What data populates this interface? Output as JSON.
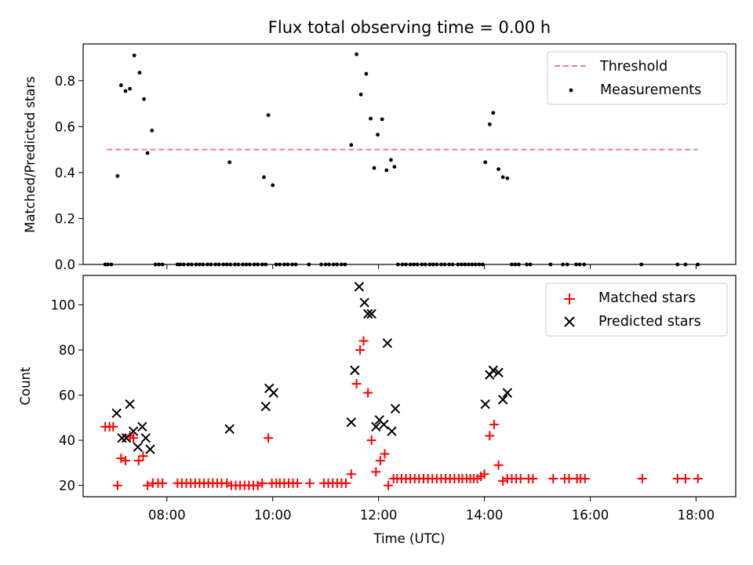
{
  "title": "Flux total observing time = 0.00 h",
  "chart_data": [
    {
      "type": "scatter",
      "ylabel": "Matched/Predicted stars",
      "xlabel": "",
      "xlim": [
        "06:25",
        "18:45"
      ],
      "ylim": [
        0,
        0.96
      ],
      "yticks": [
        "0.0",
        "0.2",
        "0.4",
        "0.6",
        "0.8"
      ],
      "grid": false,
      "legend_position": "top-right",
      "threshold": {
        "name": "Threshold",
        "y": 0.5,
        "x_start": "06:52",
        "x_end": "18:02",
        "color": "#f08080",
        "style": "dashed"
      },
      "series": [
        {
          "name": "Measurements",
          "color": "#000000",
          "points": [
            [
              "06:50",
              0
            ],
            [
              "06:53",
              0
            ],
            [
              "06:57",
              0
            ],
            [
              "07:04",
              0.385
            ],
            [
              "07:08",
              0.78
            ],
            [
              "07:13",
              0.755
            ],
            [
              "07:18",
              0.765
            ],
            [
              "07:23",
              0.91
            ],
            [
              "07:29",
              0.835
            ],
            [
              "07:34",
              0.72
            ],
            [
              "07:38",
              0.485
            ],
            [
              "07:43",
              0.583
            ],
            [
              "07:47",
              0
            ],
            [
              "07:51",
              0
            ],
            [
              "07:55",
              0
            ],
            [
              "08:12",
              0
            ],
            [
              "08:15",
              0
            ],
            [
              "08:19",
              0
            ],
            [
              "08:24",
              0
            ],
            [
              "08:28",
              0
            ],
            [
              "08:33",
              0
            ],
            [
              "08:37",
              0
            ],
            [
              "08:41",
              0
            ],
            [
              "08:46",
              0
            ],
            [
              "08:50",
              0
            ],
            [
              "08:55",
              0
            ],
            [
              "08:59",
              0
            ],
            [
              "09:04",
              0
            ],
            [
              "09:08",
              0
            ],
            [
              "09:12",
              0
            ],
            [
              "09:11",
              0.445
            ],
            [
              "09:17",
              0
            ],
            [
              "09:21",
              0
            ],
            [
              "09:26",
              0
            ],
            [
              "09:30",
              0
            ],
            [
              "09:34",
              0
            ],
            [
              "09:39",
              0
            ],
            [
              "09:43",
              0
            ],
            [
              "09:48",
              0
            ],
            [
              "09:52",
              0
            ],
            [
              "09:50",
              0.38
            ],
            [
              "09:55",
              0.65
            ],
            [
              "10:00",
              0.345
            ],
            [
              "10:04",
              0
            ],
            [
              "10:08",
              0
            ],
            [
              "10:13",
              0
            ],
            [
              "10:17",
              0
            ],
            [
              "10:22",
              0
            ],
            [
              "10:26",
              0
            ],
            [
              "10:41",
              0
            ],
            [
              "10:55",
              0
            ],
            [
              "11:00",
              0
            ],
            [
              "11:04",
              0
            ],
            [
              "11:09",
              0
            ],
            [
              "11:13",
              0
            ],
            [
              "11:18",
              0
            ],
            [
              "11:22",
              0
            ],
            [
              "11:29",
              0.52
            ],
            [
              "11:35",
              0.915
            ],
            [
              "11:40",
              0.74
            ],
            [
              "11:46",
              0.83
            ],
            [
              "11:51",
              0.635
            ],
            [
              "11:55",
              0.42
            ],
            [
              "11:59",
              0.565
            ],
            [
              "12:04",
              0.632
            ],
            [
              "12:09",
              0.41
            ],
            [
              "12:14",
              0.455
            ],
            [
              "12:18",
              0.425
            ],
            [
              "12:22",
              0
            ],
            [
              "12:27",
              0
            ],
            [
              "12:31",
              0
            ],
            [
              "12:36",
              0
            ],
            [
              "12:40",
              0
            ],
            [
              "12:44",
              0
            ],
            [
              "12:49",
              0
            ],
            [
              "12:53",
              0
            ],
            [
              "12:58",
              0
            ],
            [
              "13:02",
              0
            ],
            [
              "13:06",
              0
            ],
            [
              "13:11",
              0
            ],
            [
              "13:15",
              0
            ],
            [
              "13:20",
              0
            ],
            [
              "13:24",
              0
            ],
            [
              "13:30",
              0
            ],
            [
              "13:34",
              0
            ],
            [
              "13:38",
              0
            ],
            [
              "13:42",
              0
            ],
            [
              "13:46",
              0
            ],
            [
              "13:50",
              0
            ],
            [
              "13:54",
              0
            ],
            [
              "13:58",
              0
            ],
            [
              "14:01",
              0.445
            ],
            [
              "14:06",
              0.61
            ],
            [
              "14:10",
              0.66
            ],
            [
              "14:16",
              0.415
            ],
            [
              "14:21",
              0.38
            ],
            [
              "14:26",
              0.375
            ],
            [
              "14:31",
              0
            ],
            [
              "14:35",
              0
            ],
            [
              "14:39",
              0
            ],
            [
              "14:48",
              0
            ],
            [
              "14:52",
              0
            ],
            [
              "15:15",
              0
            ],
            [
              "15:29",
              0
            ],
            [
              "15:34",
              0
            ],
            [
              "15:44",
              0
            ],
            [
              "15:48",
              0
            ],
            [
              "15:53",
              0
            ],
            [
              "16:58",
              0
            ],
            [
              "17:39",
              0
            ],
            [
              "17:48",
              0
            ],
            [
              "18:02",
              0
            ]
          ]
        }
      ]
    },
    {
      "type": "scatter",
      "ylabel": "Count",
      "xlabel": "Time (UTC)",
      "xlim": [
        "06:25",
        "18:45"
      ],
      "xticks": [
        "08:00",
        "10:00",
        "12:00",
        "14:00",
        "16:00",
        "18:00"
      ],
      "ylim": [
        15,
        113
      ],
      "yticks": [
        "20",
        "40",
        "60",
        "80",
        "100"
      ],
      "grid": false,
      "legend_position": "top-right",
      "series": [
        {
          "name": "Matched stars",
          "color": "#ff0000",
          "marker": "plus",
          "points": [
            [
              "06:50",
              46
            ],
            [
              "06:55",
              46
            ],
            [
              "06:59",
              46
            ],
            [
              "07:04",
              20
            ],
            [
              "07:08",
              32
            ],
            [
              "07:13",
              31
            ],
            [
              "07:18",
              42
            ],
            [
              "07:22",
              41
            ],
            [
              "07:28",
              31
            ],
            [
              "07:33",
              33
            ],
            [
              "07:38",
              20
            ],
            [
              "07:44",
              21
            ],
            [
              "07:50",
              21
            ],
            [
              "07:55",
              21
            ],
            [
              "08:12",
              21
            ],
            [
              "08:17",
              21
            ],
            [
              "08:22",
              21
            ],
            [
              "08:27",
              21
            ],
            [
              "08:32",
              21
            ],
            [
              "08:37",
              21
            ],
            [
              "08:42",
              21
            ],
            [
              "08:47",
              21
            ],
            [
              "08:52",
              21
            ],
            [
              "08:57",
              21
            ],
            [
              "09:02",
              21
            ],
            [
              "09:08",
              21
            ],
            [
              "09:13",
              20
            ],
            [
              "09:18",
              20
            ],
            [
              "09:23",
              20
            ],
            [
              "09:28",
              20
            ],
            [
              "09:33",
              20
            ],
            [
              "09:38",
              20
            ],
            [
              "09:43",
              20
            ],
            [
              "09:48",
              21
            ],
            [
              "09:55",
              41
            ],
            [
              "09:59",
              21
            ],
            [
              "10:04",
              21
            ],
            [
              "10:08",
              21
            ],
            [
              "10:13",
              21
            ],
            [
              "10:18",
              21
            ],
            [
              "10:23",
              21
            ],
            [
              "10:28",
              21
            ],
            [
              "10:42",
              21
            ],
            [
              "10:58",
              21
            ],
            [
              "11:03",
              21
            ],
            [
              "11:08",
              21
            ],
            [
              "11:13",
              21
            ],
            [
              "11:18",
              21
            ],
            [
              "11:23",
              21
            ],
            [
              "11:29",
              25
            ],
            [
              "11:35",
              65
            ],
            [
              "11:39",
              80
            ],
            [
              "11:43",
              84
            ],
            [
              "11:48",
              61
            ],
            [
              "11:52",
              40
            ],
            [
              "11:57",
              26
            ],
            [
              "12:02",
              31
            ],
            [
              "12:07",
              34
            ],
            [
              "12:11",
              20
            ],
            [
              "12:17",
              23
            ],
            [
              "12:21",
              23
            ],
            [
              "12:26",
              23
            ],
            [
              "12:31",
              23
            ],
            [
              "12:36",
              23
            ],
            [
              "12:41",
              23
            ],
            [
              "12:46",
              23
            ],
            [
              "12:51",
              23
            ],
            [
              "12:56",
              23
            ],
            [
              "13:01",
              23
            ],
            [
              "13:06",
              23
            ],
            [
              "13:11",
              23
            ],
            [
              "13:16",
              23
            ],
            [
              "13:21",
              23
            ],
            [
              "13:26",
              23
            ],
            [
              "13:31",
              23
            ],
            [
              "13:35",
              23
            ],
            [
              "13:40",
              23
            ],
            [
              "13:44",
              23
            ],
            [
              "13:48",
              23
            ],
            [
              "13:52",
              23
            ],
            [
              "13:56",
              24
            ],
            [
              "14:00",
              25
            ],
            [
              "14:06",
              42
            ],
            [
              "14:11",
              47
            ],
            [
              "14:16",
              29
            ],
            [
              "14:21",
              22
            ],
            [
              "14:26",
              23
            ],
            [
              "14:31",
              23
            ],
            [
              "14:36",
              23
            ],
            [
              "14:41",
              23
            ],
            [
              "14:50",
              23
            ],
            [
              "14:55",
              23
            ],
            [
              "15:18",
              23
            ],
            [
              "15:31",
              23
            ],
            [
              "15:36",
              23
            ],
            [
              "15:45",
              23
            ],
            [
              "15:49",
              23
            ],
            [
              "15:54",
              23
            ],
            [
              "16:59",
              23
            ],
            [
              "17:39",
              23
            ],
            [
              "17:48",
              23
            ],
            [
              "18:02",
              23
            ]
          ]
        },
        {
          "name": "Predicted stars",
          "color": "#000000",
          "marker": "cross",
          "points": [
            [
              "07:03",
              52
            ],
            [
              "07:09",
              41
            ],
            [
              "07:14",
              41
            ],
            [
              "07:18",
              56
            ],
            [
              "07:22",
              44
            ],
            [
              "07:27",
              37
            ],
            [
              "07:32",
              46
            ],
            [
              "07:36",
              41
            ],
            [
              "07:41",
              36
            ],
            [
              "09:11",
              45
            ],
            [
              "09:52",
              55
            ],
            [
              "09:56",
              63
            ],
            [
              "10:01",
              61
            ],
            [
              "11:29",
              48
            ],
            [
              "11:33",
              71
            ],
            [
              "11:38",
              108
            ],
            [
              "11:44",
              101
            ],
            [
              "11:48",
              96
            ],
            [
              "11:52",
              96
            ],
            [
              "11:57",
              46
            ],
            [
              "12:01",
              49
            ],
            [
              "12:06",
              47
            ],
            [
              "12:10",
              83
            ],
            [
              "12:15",
              44
            ],
            [
              "12:19",
              54
            ],
            [
              "14:01",
              56
            ],
            [
              "14:06",
              69
            ],
            [
              "14:10",
              71
            ],
            [
              "14:16",
              70
            ],
            [
              "14:21",
              58
            ],
            [
              "14:26",
              61
            ]
          ]
        }
      ]
    }
  ]
}
